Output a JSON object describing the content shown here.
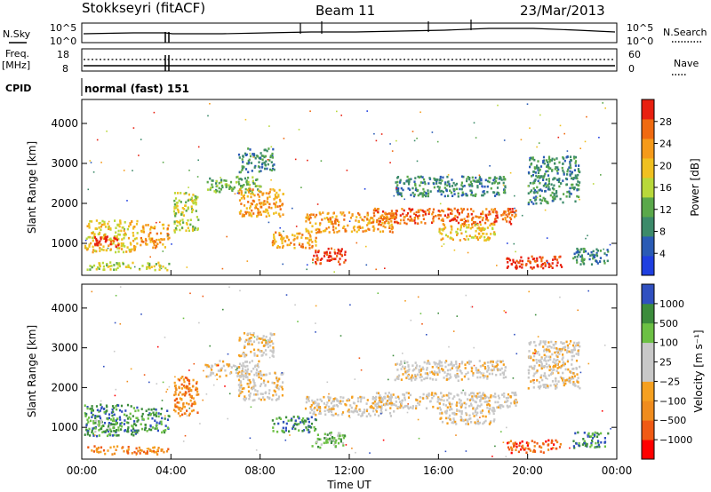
{
  "header": {
    "station": "Stokkseyri (fitACF)",
    "beam": "Beam 11",
    "date": "23/Mar/2013"
  },
  "strips": {
    "nsky_label": "N.Sky",
    "nsearch_label": "N.Search",
    "noise_ticks": [
      "10^5",
      "10^0"
    ],
    "freq_label": "Freq.",
    "freq_unit": "[MHz]",
    "freq_ticks": [
      "18",
      "8"
    ],
    "nave_label": "Nave",
    "nave_ticks": [
      "60",
      "0"
    ],
    "cpid_label": "CPID",
    "cpid_value": "normal (fast) 151"
  },
  "colors": {
    "power": [
      "#1f3fe0",
      "#2a5bb5",
      "#3c8a6a",
      "#5aa84a",
      "#b8d83a",
      "#f0c020",
      "#f59a1a",
      "#f06a10",
      "#e82010"
    ],
    "velocity": [
      "#ff0000",
      "#f05a14",
      "#f08c1e",
      "#f5a020",
      "#c8c8c8",
      "#c8c8c8",
      "#6cc044",
      "#3c8c3c",
      "#3050c0"
    ]
  },
  "chart_data": [
    {
      "type": "heatmap",
      "name": "power",
      "ylabel": "Slant Range [km]",
      "yticks": [
        1000,
        2000,
        3000,
        4000
      ],
      "ylim": [
        200,
        4600
      ],
      "xlim": [
        0,
        24
      ],
      "colorbar_label": "Power [dB]",
      "colorbar_ticks": [
        "4",
        "8",
        "12",
        "16",
        "20",
        "24",
        "28"
      ],
      "bands": [
        {
          "t": [
            0.2,
            3.9
          ],
          "r": [
            350,
            550
          ],
          "level": 4
        },
        {
          "t": [
            0.1,
            2.5
          ],
          "r": [
            800,
            1600
          ],
          "level": 5
        },
        {
          "t": [
            0.5,
            1.6
          ],
          "r": [
            900,
            1200
          ],
          "level": 8
        },
        {
          "t": [
            2.6,
            3.9
          ],
          "r": [
            900,
            1500
          ],
          "level": 6
        },
        {
          "t": [
            4.1,
            5.2
          ],
          "r": [
            1300,
            2300
          ],
          "level": 4
        },
        {
          "t": [
            5.5,
            8.0
          ],
          "r": [
            2300,
            2700
          ],
          "level": 3
        },
        {
          "t": [
            7.0,
            9.0
          ],
          "r": [
            1700,
            2400
          ],
          "level": 6
        },
        {
          "t": [
            7.0,
            8.6
          ],
          "r": [
            2800,
            3400
          ],
          "level": 2
        },
        {
          "t": [
            8.5,
            10.5
          ],
          "r": [
            900,
            1300
          ],
          "level": 6
        },
        {
          "t": [
            10.0,
            14.0
          ],
          "r": [
            1300,
            1800
          ],
          "level": 6
        },
        {
          "t": [
            10.3,
            11.8
          ],
          "r": [
            500,
            900
          ],
          "level": 8
        },
        {
          "t": [
            13.0,
            19.5
          ],
          "r": [
            1500,
            1900
          ],
          "level": 7
        },
        {
          "t": [
            16.0,
            18.5
          ],
          "r": [
            1100,
            1500
          ],
          "level": 5
        },
        {
          "t": [
            14.0,
            19.0
          ],
          "r": [
            2200,
            2700
          ],
          "level": 2
        },
        {
          "t": [
            19.0,
            21.5
          ],
          "r": [
            380,
            700
          ],
          "level": 8
        },
        {
          "t": [
            20.0,
            22.3
          ],
          "r": [
            2000,
            3200
          ],
          "level": 2
        },
        {
          "t": [
            22.0,
            23.6
          ],
          "r": [
            500,
            900
          ],
          "level": 2
        }
      ]
    },
    {
      "type": "heatmap",
      "name": "velocity",
      "ylabel": "Slant Range [km]",
      "yticks": [
        1000,
        2000,
        3000,
        4000
      ],
      "ylim": [
        200,
        4600
      ],
      "xlim": [
        0,
        24
      ],
      "xlabel": "Time UT",
      "xticks": [
        "00:00",
        "04:00",
        "08:00",
        "12:00",
        "16:00",
        "20:00",
        "00:00"
      ],
      "colorbar_label": "Velocity [m s⁻¹]",
      "colorbar_ticks": [
        "1000",
        "500",
        "100",
        "25",
        "−25",
        "−100",
        "−500",
        "−1000"
      ],
      "bands": [
        {
          "t": [
            0.2,
            3.9
          ],
          "r": [
            350,
            550
          ],
          "level": 2
        },
        {
          "t": [
            0.1,
            2.5
          ],
          "r": [
            800,
            1600
          ],
          "level": 7
        },
        {
          "t": [
            0.5,
            1.6
          ],
          "r": [
            900,
            1200
          ],
          "level": 6
        },
        {
          "t": [
            2.6,
            3.9
          ],
          "r": [
            900,
            1500
          ],
          "level": 7
        },
        {
          "t": [
            4.1,
            5.2
          ],
          "r": [
            1300,
            2300
          ],
          "level": 2
        },
        {
          "t": [
            5.5,
            8.0
          ],
          "r": [
            2300,
            2700
          ],
          "level": 4
        },
        {
          "t": [
            7.0,
            9.0
          ],
          "r": [
            1700,
            2400
          ],
          "level": 4
        },
        {
          "t": [
            7.0,
            8.6
          ],
          "r": [
            2800,
            3400
          ],
          "level": 4
        },
        {
          "t": [
            8.5,
            10.5
          ],
          "r": [
            900,
            1300
          ],
          "level": 7
        },
        {
          "t": [
            10.0,
            14.0
          ],
          "r": [
            1300,
            1800
          ],
          "level": 4
        },
        {
          "t": [
            10.3,
            11.8
          ],
          "r": [
            500,
            900
          ],
          "level": 6
        },
        {
          "t": [
            13.0,
            19.5
          ],
          "r": [
            1500,
            1900
          ],
          "level": 4
        },
        {
          "t": [
            16.0,
            18.5
          ],
          "r": [
            1100,
            1500
          ],
          "level": 4
        },
        {
          "t": [
            14.0,
            19.0
          ],
          "r": [
            2200,
            2700
          ],
          "level": 4
        },
        {
          "t": [
            19.0,
            21.5
          ],
          "r": [
            380,
            700
          ],
          "level": 1
        },
        {
          "t": [
            20.0,
            22.3
          ],
          "r": [
            2000,
            3200
          ],
          "level": 4
        },
        {
          "t": [
            22.0,
            23.6
          ],
          "r": [
            500,
            900
          ],
          "level": 7
        }
      ]
    }
  ]
}
